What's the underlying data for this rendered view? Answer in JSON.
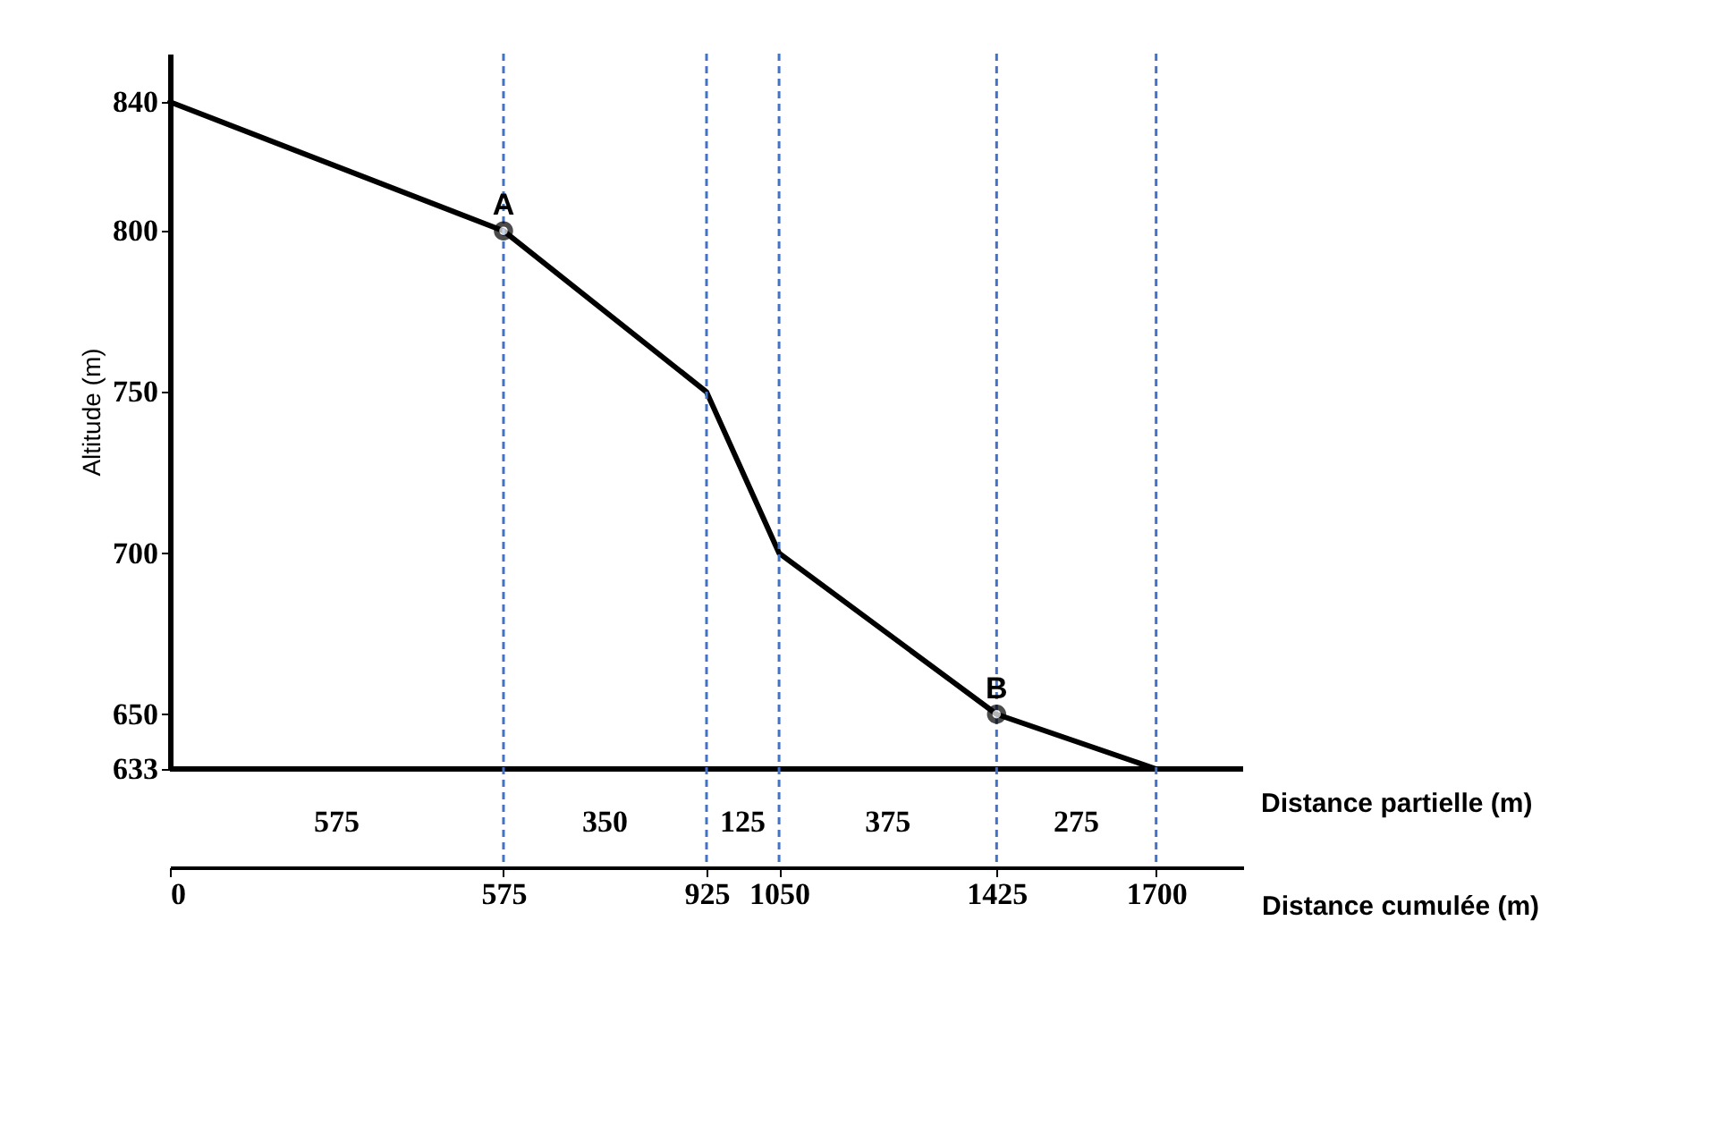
{
  "chart_data": {
    "type": "line",
    "ylabel": "Altitude (m)",
    "xlabel": "Distance cumulée (m)",
    "x": [
      0,
      575,
      925,
      1050,
      1425,
      1700
    ],
    "series": [
      {
        "color": "#000000",
        "values": [
          840,
          800,
          750,
          700,
          650,
          633
        ]
      }
    ],
    "xlim": [
      0,
      1850
    ],
    "xticks": [
      0,
      575,
      925,
      1050,
      1425,
      1700
    ],
    "ylim": [
      633,
      855
    ],
    "yticks": [
      633,
      650,
      700,
      750,
      800,
      840
    ],
    "grid": false,
    "marker": "none",
    "line_style": "solid",
    "ref_lines": [
      {
        "axis": "x",
        "value": 575,
        "color": "#4472c4",
        "line_style": "dashed"
      },
      {
        "axis": "x",
        "value": 925,
        "color": "#4472c4",
        "line_style": "dashed"
      },
      {
        "axis": "x",
        "value": 1050,
        "color": "#4472c4",
        "line_style": "dashed"
      },
      {
        "axis": "x",
        "value": 1425,
        "color": "#4472c4",
        "line_style": "dashed"
      },
      {
        "axis": "x",
        "value": 1700,
        "color": "#4472c4",
        "line_style": "dashed"
      }
    ],
    "annotations": [
      {
        "text": "A",
        "x": 575,
        "y": 800
      },
      {
        "text": "B",
        "x": 1425,
        "y": 650
      },
      "575",
      "350",
      "125",
      "375",
      "275",
      "Distance partielle (m)"
    ]
  }
}
